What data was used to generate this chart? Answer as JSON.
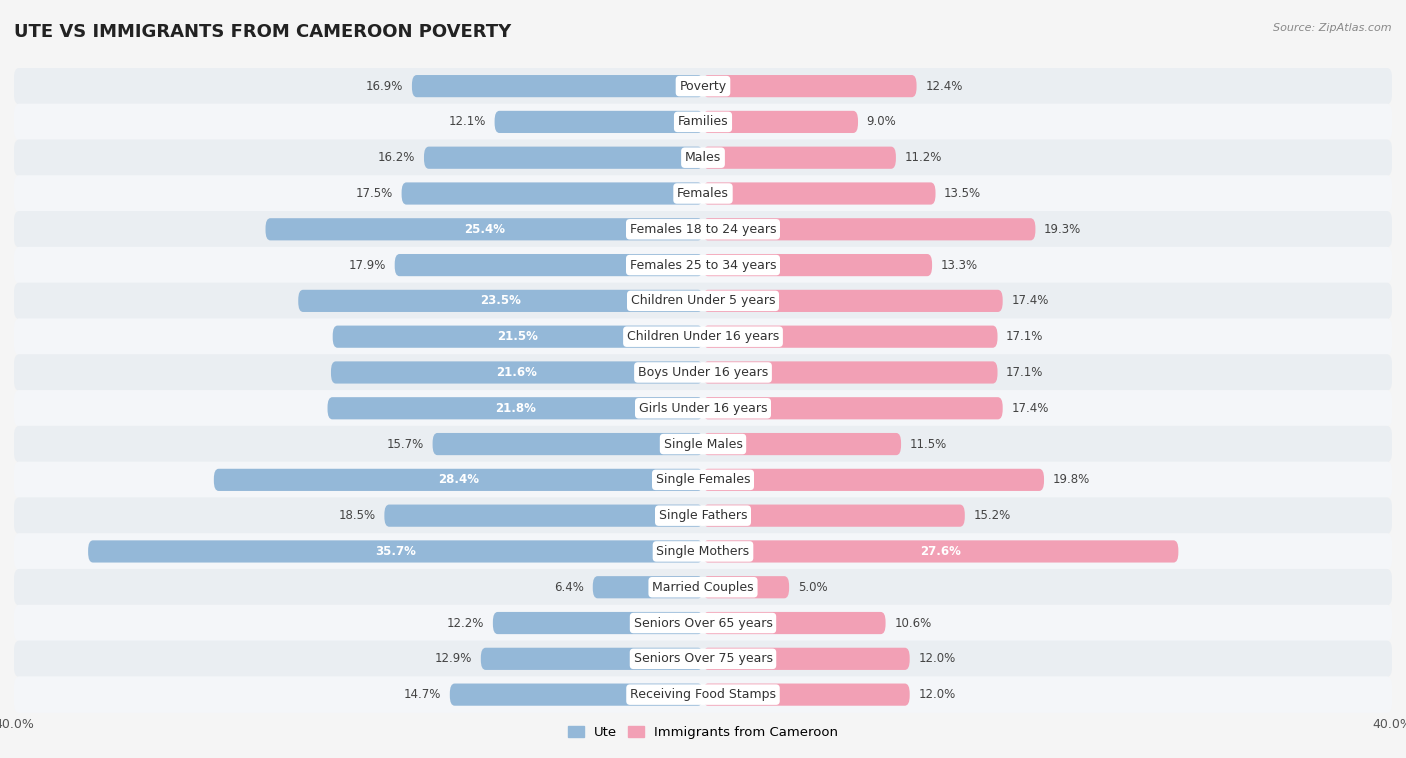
{
  "title": "UTE VS IMMIGRANTS FROM CAMEROON POVERTY",
  "source": "Source: ZipAtlas.com",
  "categories": [
    "Poverty",
    "Families",
    "Males",
    "Females",
    "Females 18 to 24 years",
    "Females 25 to 34 years",
    "Children Under 5 years",
    "Children Under 16 years",
    "Boys Under 16 years",
    "Girls Under 16 years",
    "Single Males",
    "Single Females",
    "Single Fathers",
    "Single Mothers",
    "Married Couples",
    "Seniors Over 65 years",
    "Seniors Over 75 years",
    "Receiving Food Stamps"
  ],
  "ute_values": [
    16.9,
    12.1,
    16.2,
    17.5,
    25.4,
    17.9,
    23.5,
    21.5,
    21.6,
    21.8,
    15.7,
    28.4,
    18.5,
    35.7,
    6.4,
    12.2,
    12.9,
    14.7
  ],
  "cam_values": [
    12.4,
    9.0,
    11.2,
    13.5,
    19.3,
    13.3,
    17.4,
    17.1,
    17.1,
    17.4,
    11.5,
    19.8,
    15.2,
    27.6,
    5.0,
    10.6,
    12.0,
    12.0
  ],
  "ute_color": "#94b8d8",
  "cam_color": "#f2a0b5",
  "ute_label": "Ute",
  "cam_label": "Immigrants from Cameroon",
  "xlim": 40.0,
  "row_color_odd": "#eaeef2",
  "row_color_even": "#f4f6f9",
  "title_fontsize": 13,
  "cat_fontsize": 9,
  "value_fontsize": 8.5,
  "bar_height": 0.62,
  "figsize": [
    14.06,
    7.58
  ],
  "dpi": 100,
  "inside_label_threshold": 20.0
}
